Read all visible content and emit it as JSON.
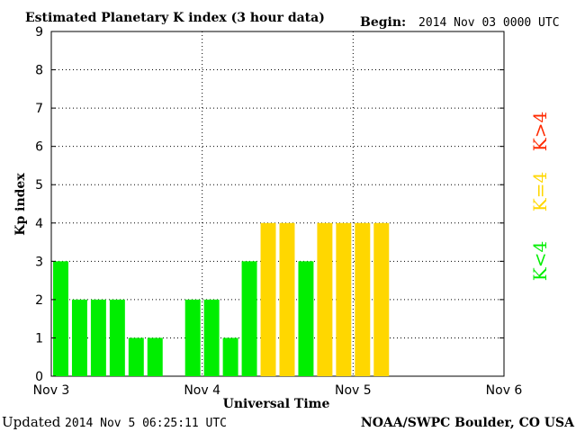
{
  "header": {
    "title": "Estimated Planetary K index (3 hour data)",
    "begin_label": "Begin:",
    "begin_value": "2014 Nov 03 0000 UTC"
  },
  "footer": {
    "updated_label": "Updated",
    "updated_value": "2014 Nov  5 06:25:11 UTC",
    "credit": "NOAA/SWPC Boulder, CO USA"
  },
  "legend": [
    {
      "label": "K<4",
      "color": "#00ee00"
    },
    {
      "label": "K=4",
      "color": "#ffd700"
    },
    {
      "label": "K>4",
      "color": "#ff2a00"
    }
  ],
  "chart_data": {
    "type": "bar",
    "title": "Estimated Planetary K index (3 hour data)",
    "xlabel": "Universal Time",
    "ylabel": "Kp index",
    "ylim": [
      0,
      9
    ],
    "yticks": [
      "0",
      "1",
      "2",
      "3",
      "4",
      "5",
      "6",
      "7",
      "8",
      "9"
    ],
    "xtick_labels": [
      "Nov 3",
      "Nov 4",
      "Nov 5",
      "Nov 6"
    ],
    "xlim_hours": [
      0,
      72
    ],
    "interval_hours": 3,
    "values": [
      3,
      2,
      2,
      2,
      1,
      1,
      null,
      2,
      2,
      1,
      3,
      4,
      4,
      3,
      4,
      4,
      4,
      4
    ],
    "grid": true,
    "colors": {
      "below4": "#00ee00",
      "equal4": "#ffd700",
      "above4": "#ff2a00"
    }
  }
}
